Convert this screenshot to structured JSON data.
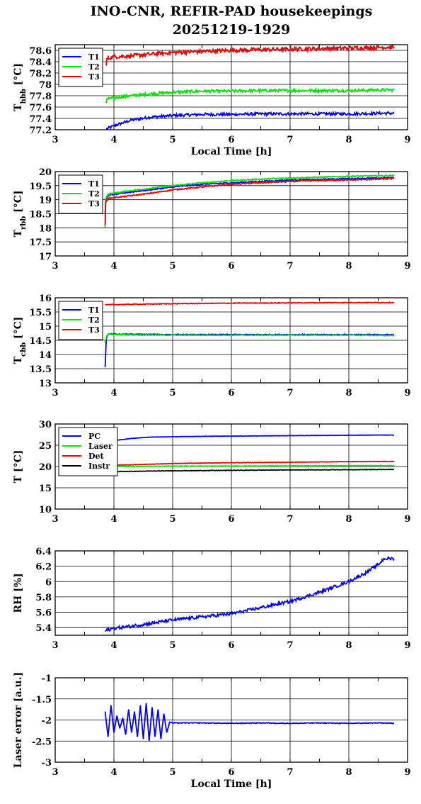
{
  "title_line1": "INO-CNR, REFIR-PAD housekeepings",
  "title_line2": "20251219-1929",
  "colors": {
    "blue": "#0000ff",
    "green": "#00e600",
    "red": "#e60000",
    "black": "#000000"
  },
  "chart_data": [
    {
      "type": "line",
      "ylabel_main": "T",
      "ylabel_sub": "hbb",
      "ylabel_unit": " [°C]",
      "xlabel": "Local Time [h]",
      "xlim": [
        3,
        9
      ],
      "ylim": [
        77.2,
        78.7
      ],
      "yticks": [
        "77.2",
        "77.4",
        "77.6",
        "77.8",
        "78",
        "78.2",
        "78.4",
        "78.6"
      ],
      "xticks": [
        "3",
        "4",
        "5",
        "6",
        "7",
        "8",
        "9"
      ],
      "grid": true,
      "legend": "top-left",
      "series": [
        {
          "name": "T1",
          "color": "blue",
          "x": [
            3.87,
            4.0,
            4.3,
            4.6,
            5.0,
            5.5,
            6.0,
            6.5,
            7.0,
            7.5,
            8.0,
            8.5,
            8.77
          ],
          "values": [
            77.21,
            77.27,
            77.37,
            77.42,
            77.45,
            77.47,
            77.47,
            77.48,
            77.48,
            77.48,
            77.48,
            77.49,
            77.49
          ],
          "noise": 0.025
        },
        {
          "name": "T2",
          "color": "green",
          "x": [
            3.87,
            3.88,
            4.0,
            4.3,
            4.6,
            5.0,
            5.5,
            6.0,
            6.5,
            7.0,
            7.5,
            8.0,
            8.5,
            8.77
          ],
          "values": [
            77.67,
            77.74,
            77.76,
            77.8,
            77.83,
            77.86,
            77.88,
            77.88,
            77.89,
            77.89,
            77.89,
            77.89,
            77.9,
            77.9
          ],
          "noise": 0.025
        },
        {
          "name": "T3",
          "color": "red",
          "x": [
            3.87,
            3.88,
            4.0,
            4.3,
            4.6,
            5.0,
            5.5,
            6.0,
            6.5,
            7.0,
            7.5,
            8.0,
            8.5,
            8.77
          ],
          "values": [
            78.33,
            78.45,
            78.49,
            78.5,
            78.53,
            78.56,
            78.58,
            78.6,
            78.61,
            78.62,
            78.63,
            78.64,
            78.65,
            78.66
          ],
          "noise": 0.035
        }
      ]
    },
    {
      "type": "line",
      "ylabel_main": "T",
      "ylabel_sub": "rbb",
      "ylabel_unit": " [°C]",
      "xlabel": "",
      "xlim": [
        3,
        9
      ],
      "ylim": [
        17,
        20
      ],
      "yticks": [
        "17",
        "17.5",
        "18",
        "18.5",
        "19",
        "19.5",
        "20"
      ],
      "xticks": [
        "3",
        "4",
        "5",
        "6",
        "7",
        "8",
        "9"
      ],
      "grid": true,
      "legend": "top-left",
      "series": [
        {
          "name": "T1",
          "color": "blue",
          "x": [
            3.85,
            3.86,
            3.9,
            4.2,
            4.6,
            5.0,
            5.5,
            6.0,
            6.5,
            7.0,
            7.5,
            8.0,
            8.5,
            8.77
          ],
          "values": [
            18.5,
            19.0,
            19.15,
            19.25,
            19.35,
            19.45,
            19.55,
            19.6,
            19.65,
            19.7,
            19.72,
            19.75,
            19.77,
            19.78
          ],
          "noise": 0.02
        },
        {
          "name": "T2",
          "color": "green",
          "x": [
            3.85,
            3.86,
            3.9,
            4.2,
            4.6,
            5.0,
            5.5,
            6.0,
            6.5,
            7.0,
            7.5,
            8.0,
            8.5,
            8.77
          ],
          "values": [
            18.0,
            19.05,
            19.2,
            19.3,
            19.4,
            19.5,
            19.6,
            19.68,
            19.73,
            19.77,
            19.8,
            19.83,
            19.85,
            19.86
          ],
          "noise": 0.02
        },
        {
          "name": "T3",
          "color": "red",
          "x": [
            3.85,
            3.86,
            3.9,
            4.2,
            4.6,
            5.0,
            5.5,
            6.0,
            6.5,
            7.0,
            7.5,
            8.0,
            8.5,
            8.77
          ],
          "values": [
            18.1,
            18.9,
            19.05,
            19.12,
            19.22,
            19.35,
            19.45,
            19.55,
            19.6,
            19.65,
            19.68,
            19.7,
            19.73,
            19.75
          ],
          "noise": 0.02
        }
      ]
    },
    {
      "type": "line",
      "ylabel_main": "T",
      "ylabel_sub": "cbb",
      "ylabel_unit": " [°C]",
      "xlabel": "",
      "xlim": [
        3,
        9
      ],
      "ylim": [
        13,
        16
      ],
      "yticks": [
        "13",
        "13.5",
        "14",
        "14.5",
        "15",
        "15.5",
        "16"
      ],
      "xticks": [
        "3",
        "4",
        "5",
        "6",
        "7",
        "8",
        "9"
      ],
      "grid": true,
      "legend": "top-left",
      "series": [
        {
          "name": "T1",
          "color": "blue",
          "x": [
            3.85,
            3.87,
            3.9,
            4.0,
            5.0,
            6.0,
            7.0,
            8.0,
            8.77
          ],
          "values": [
            13.55,
            14.55,
            14.72,
            14.72,
            14.7,
            14.7,
            14.7,
            14.7,
            14.7
          ],
          "noise": 0.015
        },
        {
          "name": "T2",
          "color": "green",
          "x": [
            3.85,
            3.87,
            3.9,
            4.0,
            5.0,
            6.0,
            7.0,
            8.0,
            8.77
          ],
          "values": [
            14.4,
            14.6,
            14.72,
            14.7,
            14.68,
            14.68,
            14.68,
            14.68,
            14.67
          ],
          "noise": 0.015
        },
        {
          "name": "T3",
          "color": "red",
          "x": [
            3.85,
            4.0,
            5.0,
            6.0,
            7.0,
            8.0,
            8.77
          ],
          "values": [
            15.75,
            15.76,
            15.79,
            15.81,
            15.82,
            15.83,
            15.83
          ],
          "noise": 0.012
        }
      ]
    },
    {
      "type": "line",
      "ylabel_main": "T [°C]",
      "ylabel_sub": "",
      "ylabel_unit": "",
      "xlabel": "",
      "xlim": [
        3,
        9
      ],
      "ylim": [
        10,
        30
      ],
      "yticks": [
        "10",
        "15",
        "20",
        "25",
        "30"
      ],
      "xticks": [
        "3",
        "4",
        "5",
        "6",
        "7",
        "8",
        "9"
      ],
      "grid": true,
      "legend": "top-left",
      "series": [
        {
          "name": "PC",
          "color": "blue",
          "x": [
            3.85,
            4.0,
            4.3,
            4.6,
            5.0,
            5.5,
            6.0,
            6.5,
            7.0,
            7.5,
            8.0,
            8.5,
            8.77
          ],
          "values": [
            25.8,
            26.1,
            26.6,
            26.9,
            27.0,
            27.1,
            27.15,
            27.2,
            27.25,
            27.3,
            27.35,
            27.4,
            27.4
          ],
          "noise": 0.03
        },
        {
          "name": "Laser",
          "color": "green",
          "x": [
            3.85,
            4.0,
            5.0,
            6.0,
            7.0,
            8.0,
            8.77
          ],
          "values": [
            20.0,
            20.0,
            20.1,
            20.1,
            20.15,
            20.2,
            20.2
          ],
          "noise": 0.05
        },
        {
          "name": "Det",
          "color": "red",
          "x": [
            3.85,
            4.0,
            5.0,
            6.0,
            7.0,
            8.0,
            8.77
          ],
          "values": [
            20.1,
            20.3,
            20.7,
            20.9,
            21.0,
            21.15,
            21.2
          ],
          "noise": 0.04
        },
        {
          "name": "Instr",
          "color": "black",
          "x": [
            3.85,
            4.0,
            5.0,
            6.0,
            7.0,
            8.0,
            8.77
          ],
          "values": [
            18.6,
            18.8,
            19.0,
            19.1,
            19.2,
            19.25,
            19.3
          ],
          "noise": 0.05
        }
      ]
    },
    {
      "type": "line",
      "ylabel_main": "RH [%]",
      "ylabel_sub": "",
      "ylabel_unit": "",
      "xlabel": "",
      "xlim": [
        3,
        9
      ],
      "ylim": [
        5.3,
        6.4
      ],
      "yticks": [
        "5.4",
        "5.6",
        "5.8",
        "6",
        "6.2",
        "6.4"
      ],
      "xticks": [
        "3",
        "4",
        "5",
        "6",
        "7",
        "8",
        "9"
      ],
      "grid": true,
      "legend": "none",
      "series": [
        {
          "name": "",
          "color": "blue",
          "x": [
            3.85,
            4.0,
            4.5,
            5.0,
            5.5,
            6.0,
            6.5,
            7.0,
            7.5,
            8.0,
            8.3,
            8.5,
            8.6,
            8.77
          ],
          "values": [
            5.36,
            5.39,
            5.44,
            5.5,
            5.54,
            5.58,
            5.66,
            5.74,
            5.86,
            6.0,
            6.12,
            6.22,
            6.3,
            6.3
          ],
          "noise": 0.02
        }
      ]
    },
    {
      "type": "line",
      "ylabel_main": "Laser error [a.u.]",
      "ylabel_sub": "",
      "ylabel_unit": "",
      "xlabel": "Local Time [h]",
      "xlim": [
        3,
        9
      ],
      "ylim": [
        -3,
        -1
      ],
      "yticks": [
        "-3",
        "-2.5",
        "-2",
        "-1.5",
        "-1"
      ],
      "xticks": [
        "3",
        "4",
        "5",
        "6",
        "7",
        "8",
        "9"
      ],
      "grid": true,
      "legend": "none",
      "series": [
        {
          "name": "",
          "color": "blue",
          "x": [
            3.85,
            3.9,
            3.95,
            4.0,
            4.05,
            4.1,
            4.15,
            4.2,
            4.25,
            4.3,
            4.35,
            4.4,
            4.45,
            4.5,
            4.55,
            4.6,
            4.65,
            4.7,
            4.75,
            4.8,
            4.85,
            4.9,
            4.95,
            5.0,
            5.5,
            6.0,
            6.5,
            7.0,
            7.5,
            8.0,
            8.5,
            8.77
          ],
          "values": [
            -1.8,
            -2.4,
            -1.65,
            -2.3,
            -1.9,
            -2.2,
            -1.95,
            -2.35,
            -1.75,
            -2.3,
            -1.8,
            -2.4,
            -1.65,
            -2.45,
            -1.6,
            -2.5,
            -1.7,
            -2.4,
            -1.75,
            -2.45,
            -1.85,
            -2.3,
            -2.05,
            -2.07,
            -2.07,
            -2.08,
            -2.07,
            -2.08,
            -2.07,
            -2.08,
            -2.07,
            -2.08
          ],
          "noise": 0.008
        }
      ]
    }
  ]
}
